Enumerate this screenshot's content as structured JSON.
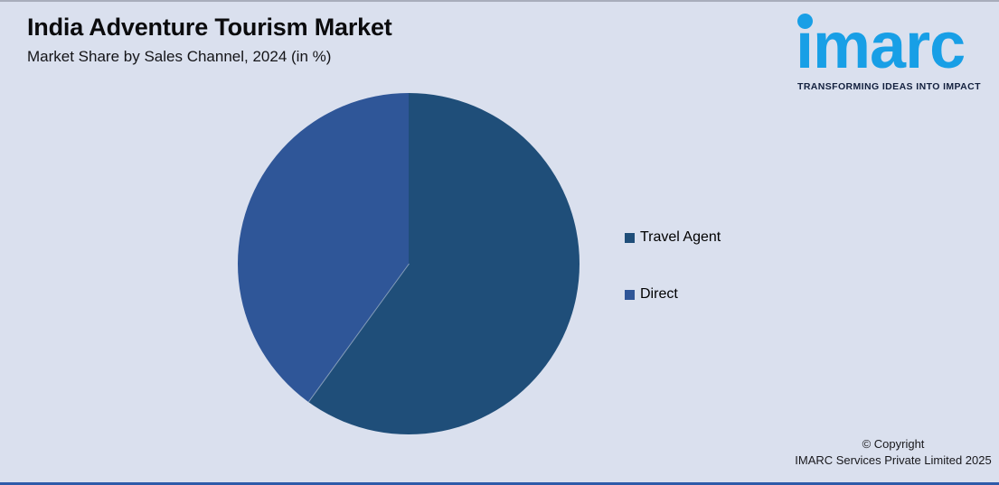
{
  "page": {
    "background_color": "#dae0ee",
    "top_line_color": "#a8adbb",
    "bottom_bar_color": "#2e5ba9"
  },
  "header": {
    "title": "India Adventure Tourism Market",
    "subtitle": "Market Share by Sales Channel, 2024 (in %)"
  },
  "logo": {
    "text": "imarc",
    "tagline": "TRANSFORMING IDEAS INTO IMPACT",
    "brand_color": "#189fe6",
    "tagline_color": "#13203e"
  },
  "chart_data": {
    "type": "pie",
    "title": "India Adventure Tourism Market",
    "subtitle": "Market Share by Sales Channel, 2024 (in %)",
    "labels": [
      "Travel Agent",
      "Direct"
    ],
    "values": [
      60,
      40
    ],
    "unit": "%",
    "colors": [
      "#1f4e79",
      "#2f5698"
    ],
    "start_angle_deg": 0,
    "direction": "clockwise",
    "legend_position": "right",
    "data_labels_shown": false
  },
  "footer": {
    "line1": "© Copyright",
    "line2": "IMARC Services Private Limited 2025"
  }
}
